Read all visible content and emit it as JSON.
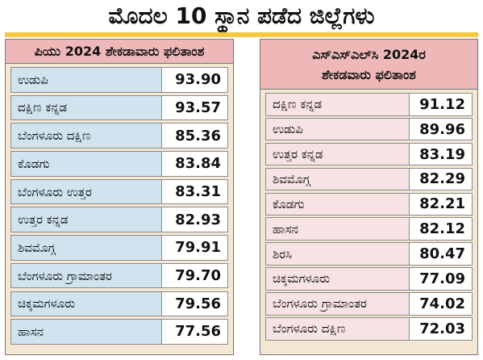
{
  "title": "ಮೊದಲ 10 ಸ್ಥಾನ ಪಡೆದ ಜಿಲ್ಲೆಗಳು",
  "left_table": {
    "header": "ಪಿಯು 2024 ಶೇಕಡಾವಾರು ಫಲಿತಾಂಶ",
    "rows": [
      {
        "district": "ಉಡುಪಿ",
        "value": "93.90"
      },
      {
        "district": "ದಕ್ಷಿಣ ಕನ್ನಡ",
        "value": "93.57"
      },
      {
        "district": "ಬೆಂಗಳೂರು ದಕ್ಷಿಣ",
        "value": "85.36"
      },
      {
        "district": "ಕೊಡಗು",
        "value": "83.84"
      },
      {
        "district": "ಬೆಂಗಳೂರು ಉತ್ತರ",
        "value": "83.31"
      },
      {
        "district": "ಉತ್ತರ ಕನ್ನಡ",
        "value": "82.93"
      },
      {
        "district": "ಶಿವಮೊಗ್ಗ",
        "value": "79.91"
      },
      {
        "district": "ಬೆಂಗಳೂರು ಗ್ರಾಮಾಂತರ",
        "value": "79.70"
      },
      {
        "district": "ಚಿಕ್ಕಮಗಳೂರು",
        "value": "79.56"
      },
      {
        "district": "ಹಾಸನ",
        "value": "77.56"
      }
    ]
  },
  "right_table": {
    "header_line1": "ಎಸ್‌ಎಸ್‌ಎಲ್‌ಸಿ 2024ರ",
    "header_line2": "ಶೇಕಡವಾರು ಫಲಿತಾಂಶ",
    "rows": [
      {
        "district": "ದಕ್ಷಿಣ ಕನ್ನಡ",
        "value": "91.12"
      },
      {
        "district": "ಉಡುಪಿ",
        "value": "89.96"
      },
      {
        "district": "ಉತ್ತರ ಕನ್ನಡ",
        "value": "83.19"
      },
      {
        "district": "ಶಿವಮೊಗ್ಗ",
        "value": "82.29"
      },
      {
        "district": "ಕೊಡಗು",
        "value": "82.21"
      },
      {
        "district": "ಹಾಸನ",
        "value": "82.12"
      },
      {
        "district": "ಶಿರಸಿ",
        "value": "80.47"
      },
      {
        "district": "ಚಿಕ್ಕಮಗಳೂರು",
        "value": "77.09"
      },
      {
        "district": "ಬೆಂಗಳೂರು ಗ್ರಾಮಾಂತರ",
        "value": "74.02"
      },
      {
        "district": "ಬೆಂಗಳೂರು ದಕ್ಷಿಣ",
        "value": "72.03"
      }
    ]
  }
}
